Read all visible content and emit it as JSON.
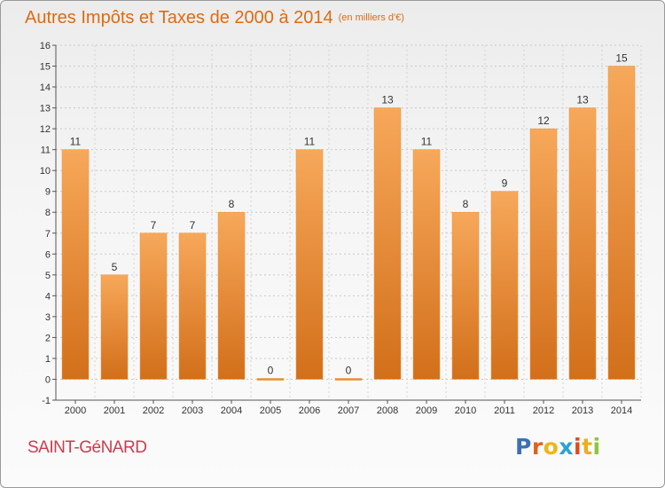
{
  "header": {
    "title": "Autres Impôts et Taxes de 2000 à 2014",
    "subtitle": "(en milliers d'€)"
  },
  "footer": {
    "commune": "SAINT-GéNARD",
    "logo_letters": [
      "P",
      "r",
      "o",
      "x",
      "i",
      "t",
      "i"
    ],
    "logo_colors": [
      "#3d6fb8",
      "#e2621a",
      "#f0b618",
      "#2f9fd8",
      "#e24a1a",
      "#e9b01c",
      "#8cc63e"
    ]
  },
  "colors": {
    "bar": "#f09236",
    "bar_dark": "#d26f1a",
    "bar_light": "#f7a85a",
    "title": "#e06a10",
    "commune": "#cc3c4e"
  },
  "chart_data": {
    "type": "bar",
    "categories": [
      "2000",
      "2001",
      "2002",
      "2003",
      "2004",
      "2005",
      "2006",
      "2007",
      "2008",
      "2009",
      "2010",
      "2011",
      "2012",
      "2013",
      "2014"
    ],
    "values": [
      11,
      5,
      7,
      7,
      8,
      0,
      11,
      0,
      13,
      11,
      8,
      9,
      12,
      13,
      15
    ],
    "ylim": [
      -1,
      16
    ],
    "yticks": [
      -1,
      0,
      1,
      2,
      3,
      4,
      5,
      6,
      7,
      8,
      9,
      10,
      11,
      12,
      13,
      14,
      15,
      16
    ],
    "grid": true,
    "legend": false
  }
}
